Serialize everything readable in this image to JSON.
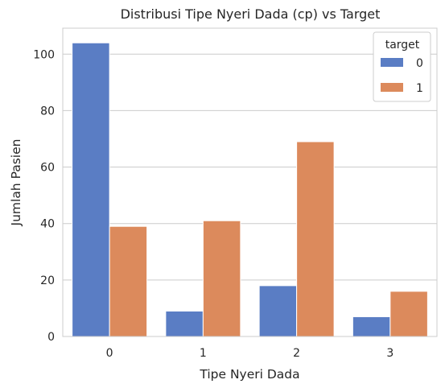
{
  "chart_data": {
    "type": "bar",
    "title": "Distribusi Tipe Nyeri Dada (cp) vs Target",
    "xlabel": "Tipe Nyeri Dada",
    "ylabel": "Jumlah Pasien",
    "categories": [
      "0",
      "1",
      "2",
      "3"
    ],
    "series": [
      {
        "name": "0",
        "color": "#5a7dc4",
        "values": [
          104,
          9,
          18,
          7
        ]
      },
      {
        "name": "1",
        "color": "#dc8a5c",
        "values": [
          39,
          41,
          69,
          16
        ]
      }
    ],
    "ylim": [
      0,
      109.2
    ],
    "yticks": [
      0,
      20,
      40,
      60,
      80,
      100
    ],
    "legend": {
      "title": "target",
      "placement": "top-right"
    },
    "grid": true
  }
}
